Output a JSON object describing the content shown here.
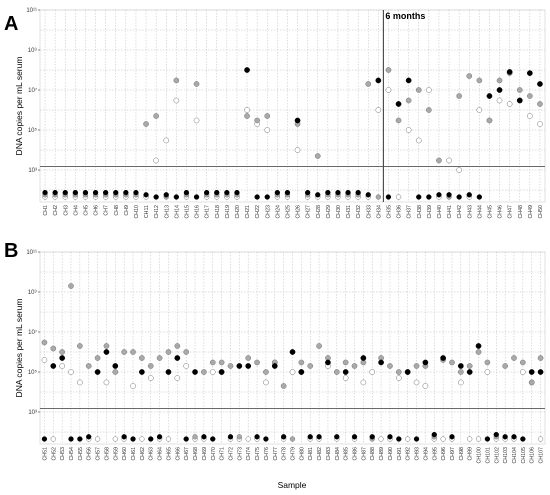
{
  "figure": {
    "xlabel": "Sample",
    "panel_letters": [
      "A",
      "B"
    ],
    "annotation": "6 months"
  },
  "colors": {
    "series": [
      "#ffffff",
      "#a9a9a9",
      "#000000"
    ],
    "threshold": "#555555",
    "grid": "#bcbcbc",
    "divider": "#444444"
  },
  "chart_data": [
    {
      "type": "scatter",
      "panel": "A",
      "ylabel": "DNA copies per mL serum",
      "y_scale": "log10",
      "ylim": [
        100,
        100000000000
      ],
      "yticks": [
        1000,
        100000,
        10000000,
        1000000000,
        100000000000
      ],
      "ytick_labels": [
        "10³",
        "10⁵",
        "10⁷",
        "10⁹",
        "10¹¹"
      ],
      "threshold": 1500,
      "annotation": "6 months",
      "annotation_after": "CH34",
      "categories": [
        "CH1",
        "CH2",
        "CH3",
        "CH4",
        "CH5",
        "CH6",
        "CH7",
        "CH8",
        "CH9",
        "CH10",
        "CH11",
        "CH12",
        "CH13",
        "CH14",
        "CH15",
        "CH16",
        "CH17",
        "CH18",
        "CH19",
        "CH20",
        "CH21",
        "CH22",
        "CH23",
        "CH24",
        "CH25",
        "CH26",
        "CH27",
        "CH28",
        "CH29",
        "CH30",
        "CH31",
        "CH32",
        "CH33",
        "CH34",
        "CH35",
        "CH36",
        "CH37",
        "CH38",
        "CH39",
        "CH40",
        "CH41",
        "CH42",
        "CH43",
        "CH44",
        "CH45",
        "CH46",
        "CH47",
        "CH48",
        "CH49",
        "CH50"
      ],
      "series": [
        {
          "values": [
            null,
            null,
            null,
            null,
            null,
            null,
            null,
            null,
            null,
            null,
            null,
            null,
            3000,
            null,
            null,
            null,
            null,
            null,
            null,
            null,
            null,
            null,
            null,
            null,
            null,
            null,
            null,
            null,
            null,
            null,
            null,
            null,
            null,
            null,
            null,
            null,
            null,
            null,
            null,
            null,
            null,
            null,
            null,
            null,
            null,
            null,
            null,
            null,
            null,
            null
          ]
        },
        {
          "values": [
            null,
            null,
            null,
            null,
            null,
            null,
            null,
            null,
            null,
            null,
            null,
            null,
            null,
            null,
            null,
            null,
            null,
            null,
            null,
            null,
            null,
            null,
            null,
            null,
            null,
            null,
            null,
            null,
            null,
            null,
            null,
            null,
            null,
            null,
            null,
            null,
            null,
            null,
            null,
            null,
            null,
            null,
            null,
            null,
            null,
            null,
            null,
            null,
            null,
            null
          ]
        },
        {
          "values": [
            null,
            null,
            null,
            null,
            null,
            null,
            null,
            null,
            null,
            null,
            null,
            null,
            null,
            null,
            null,
            null,
            null,
            null,
            null,
            null,
            null,
            null,
            null,
            null,
            null,
            null,
            null,
            null,
            null,
            null,
            null,
            null,
            null,
            null,
            null,
            null,
            null,
            null,
            null,
            null,
            null,
            null,
            null,
            null,
            null,
            null,
            null,
            null,
            null,
            null
          ]
        }
      ]
    },
    {
      "type": "scatter",
      "panel": "B",
      "ylabel": "DNA copies per mL serum",
      "y_scale": "log10",
      "ylim": [
        100,
        100000000000
      ],
      "yticks": [
        1000,
        100000,
        10000000,
        1000000000,
        100000000000
      ],
      "ytick_labels": [
        "10³",
        "10⁵",
        "10⁷",
        "10⁹",
        "10¹¹"
      ],
      "threshold": 1500,
      "categories": [
        "CH51",
        "CH52",
        "CH53",
        "CH54",
        "CH55",
        "CH56",
        "CH57",
        "CH58",
        "CH59",
        "CH60",
        "CH61",
        "CH62",
        "CH63",
        "CH64",
        "CH65",
        "CH66",
        "CH67",
        "CH68",
        "CH69",
        "CH70",
        "CH71",
        "CH72",
        "CH73",
        "CH74",
        "CH75",
        "CH76",
        "CH77",
        "CH78",
        "CH79",
        "CH80",
        "CH81",
        "CH82",
        "CH83",
        "CH84",
        "CH85",
        "CH86",
        "CH87",
        "CH88",
        "CH89",
        "CH90",
        "CH91",
        "CH92",
        "CH93",
        "CH94",
        "CH95",
        "CH96",
        "CH97",
        "CH98",
        "CH99",
        "CH100",
        "CH101",
        "CH102",
        "CH103",
        "CH104",
        "CH105",
        "CH106",
        "CH107"
      ],
      "series": [
        {
          "values": [
            null,
            null,
            null,
            null,
            null,
            null,
            null,
            null,
            null,
            null,
            null,
            null,
            null,
            null,
            null,
            null,
            null,
            null,
            null,
            null,
            null,
            null,
            null,
            null,
            null,
            null,
            null,
            null,
            null,
            null,
            null,
            null,
            null,
            null,
            null,
            null,
            null,
            null,
            null,
            null,
            null,
            null,
            null,
            null,
            null,
            null,
            null,
            null,
            null,
            null,
            null,
            null,
            null,
            null,
            null,
            null,
            null
          ]
        },
        {
          "values": [
            null,
            null,
            null,
            null,
            null,
            null,
            null,
            null,
            null,
            null,
            null,
            null,
            null,
            null,
            null,
            null,
            null,
            null,
            null,
            null,
            null,
            null,
            null,
            null,
            null,
            null,
            null,
            null,
            null,
            null,
            null,
            null,
            null,
            null,
            null,
            null,
            null,
            null,
            null,
            null,
            null,
            null,
            null,
            null,
            null,
            null,
            null,
            null,
            null,
            null,
            null,
            null,
            null,
            null,
            null,
            null,
            null
          ]
        },
        {
          "values": [
            null,
            null,
            null,
            null,
            null,
            null,
            null,
            null,
            null,
            null,
            null,
            null,
            null,
            null,
            null,
            null,
            null,
            null,
            null,
            null,
            null,
            null,
            null,
            null,
            null,
            null,
            null,
            null,
            null,
            null,
            null,
            null,
            null,
            null,
            null,
            null,
            null,
            null,
            null,
            null,
            null,
            null,
            null,
            null,
            null,
            null,
            null,
            null,
            null,
            null,
            null,
            null,
            null,
            null,
            null,
            null,
            null
          ]
        }
      ]
    }
  ]
}
